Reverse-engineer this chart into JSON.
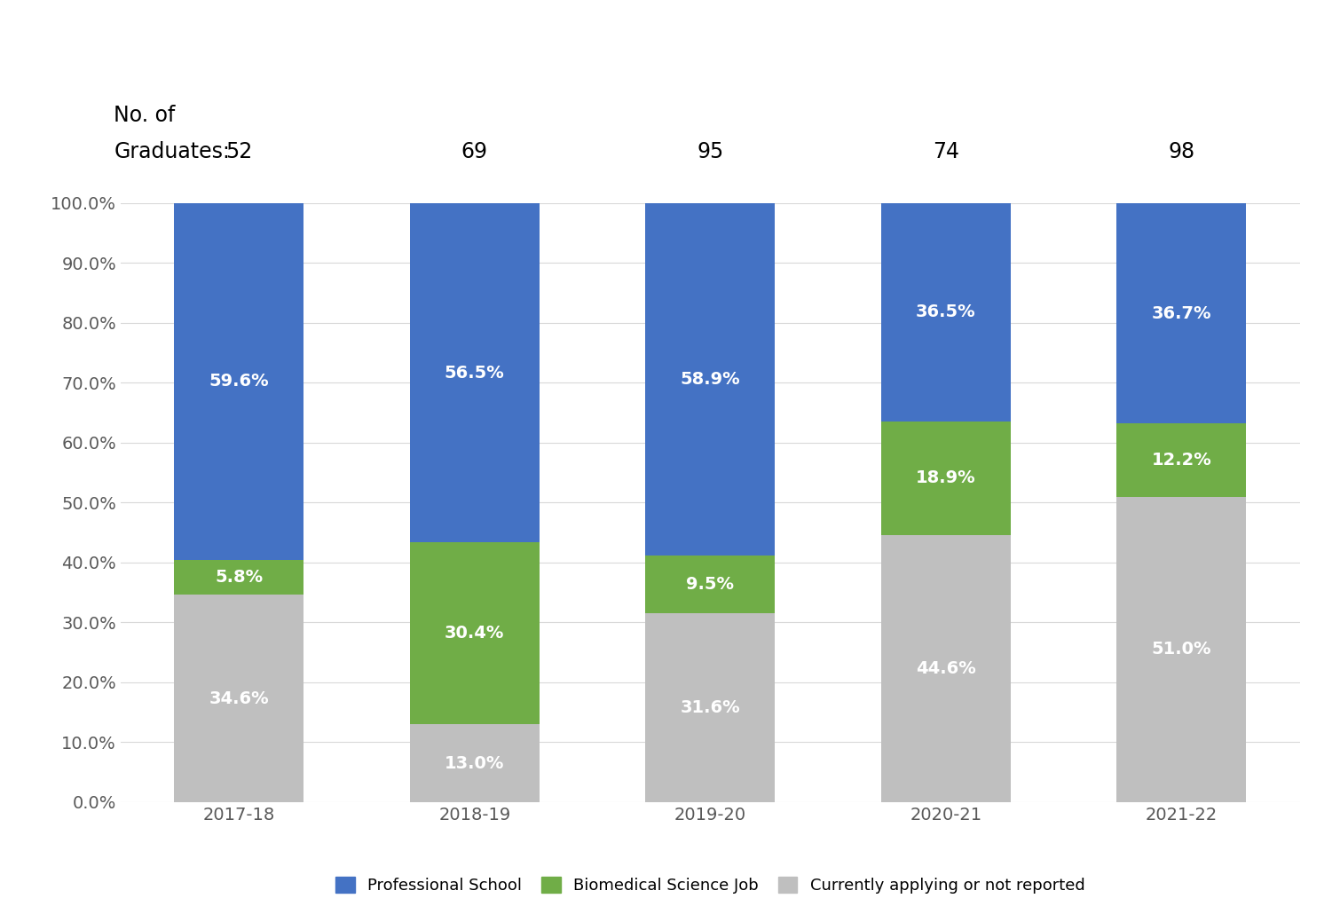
{
  "years": [
    "2017-18",
    "2018-19",
    "2019-20",
    "2020-21",
    "2021-22"
  ],
  "graduates": [
    52,
    69,
    95,
    74,
    98
  ],
  "professional_school": [
    59.6,
    56.5,
    58.9,
    36.5,
    36.7
  ],
  "biomedical_science_job": [
    5.8,
    30.4,
    9.5,
    18.9,
    12.2
  ],
  "currently_applying": [
    34.6,
    13.0,
    31.6,
    44.6,
    51.0
  ],
  "color_professional": "#4472C4",
  "color_biomedical": "#70AD47",
  "color_applying": "#BFBFBF",
  "bar_width": 0.55,
  "legend_labels": [
    "Professional School",
    "Biomedical Science Job",
    "Currently applying or not reported"
  ],
  "yticks": [
    0.0,
    10.0,
    20.0,
    30.0,
    40.0,
    50.0,
    60.0,
    70.0,
    80.0,
    90.0,
    100.0
  ],
  "background_color": "#FFFFFF",
  "tick_fontsize": 14,
  "legend_fontsize": 13,
  "annotation_fontsize": 14,
  "graduates_fontsize": 17,
  "graduates_label_fontsize": 17
}
